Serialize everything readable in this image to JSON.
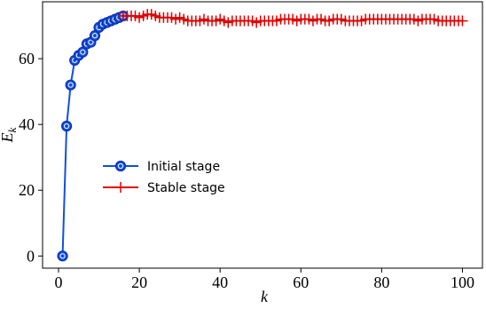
{
  "chart_data": {
    "type": "line",
    "xlabel": "k",
    "ylabel": {
      "base": "E",
      "sub": "k"
    },
    "xlim": [
      -3.95,
      104.95
    ],
    "ylim": [
      -3.7,
      77.3
    ],
    "xticks": [
      0,
      20,
      40,
      60,
      80,
      100
    ],
    "yticks": [
      0,
      20,
      40,
      60
    ],
    "legend": "center left",
    "series": [
      {
        "name": "Initial stage",
        "color": "#1050e0",
        "marker": "o",
        "x": [
          1,
          2,
          3,
          4,
          5,
          6,
          7,
          8,
          9,
          10,
          11,
          12,
          13,
          14,
          15,
          16
        ],
        "values": [
          0,
          39.5,
          52,
          59.5,
          61,
          62,
          64.5,
          65,
          67,
          69.5,
          70.5,
          71,
          71.5,
          72,
          72.5,
          73
        ]
      },
      {
        "name": "Stable stage",
        "color": "#e00000",
        "marker": "+",
        "x": [
          16,
          17,
          18,
          19,
          20,
          21,
          22,
          23,
          24,
          25,
          26,
          27,
          28,
          29,
          30,
          31,
          32,
          33,
          34,
          35,
          36,
          37,
          38,
          39,
          40,
          41,
          42,
          43,
          44,
          45,
          46,
          47,
          48,
          49,
          50,
          51,
          52,
          53,
          54,
          55,
          56,
          57,
          58,
          59,
          60,
          61,
          62,
          63,
          64,
          65,
          66,
          67,
          68,
          69,
          70,
          71,
          72,
          73,
          74,
          75,
          76,
          77,
          78,
          79,
          80,
          81,
          82,
          83,
          84,
          85,
          86,
          87,
          88,
          89,
          90,
          91,
          92,
          93,
          94,
          95,
          96,
          97,
          98,
          99,
          100
        ],
        "values": [
          73,
          73,
          73,
          73,
          72.5,
          73,
          73.5,
          73.5,
          73,
          72.5,
          72.5,
          72.5,
          72.5,
          72,
          72.5,
          72,
          71.5,
          71.5,
          71.5,
          71.5,
          72,
          71.5,
          71.5,
          71.5,
          72,
          71.5,
          71,
          71.5,
          71.5,
          71.5,
          71.5,
          71.5,
          71.5,
          71,
          71.5,
          71.5,
          71.5,
          71.5,
          71.5,
          72,
          72,
          72,
          72,
          71.5,
          72,
          72,
          72,
          71.5,
          72,
          72,
          71.5,
          71.5,
          72,
          72,
          72,
          71.5,
          71.5,
          71.5,
          71.5,
          71.5,
          72,
          72,
          72,
          72,
          72,
          72,
          72,
          72,
          72,
          72,
          72,
          72,
          72,
          71.5,
          72,
          72,
          72,
          72,
          71.5,
          71.5,
          71.5,
          71.5,
          71.5,
          71.5,
          71.5
        ]
      }
    ]
  }
}
